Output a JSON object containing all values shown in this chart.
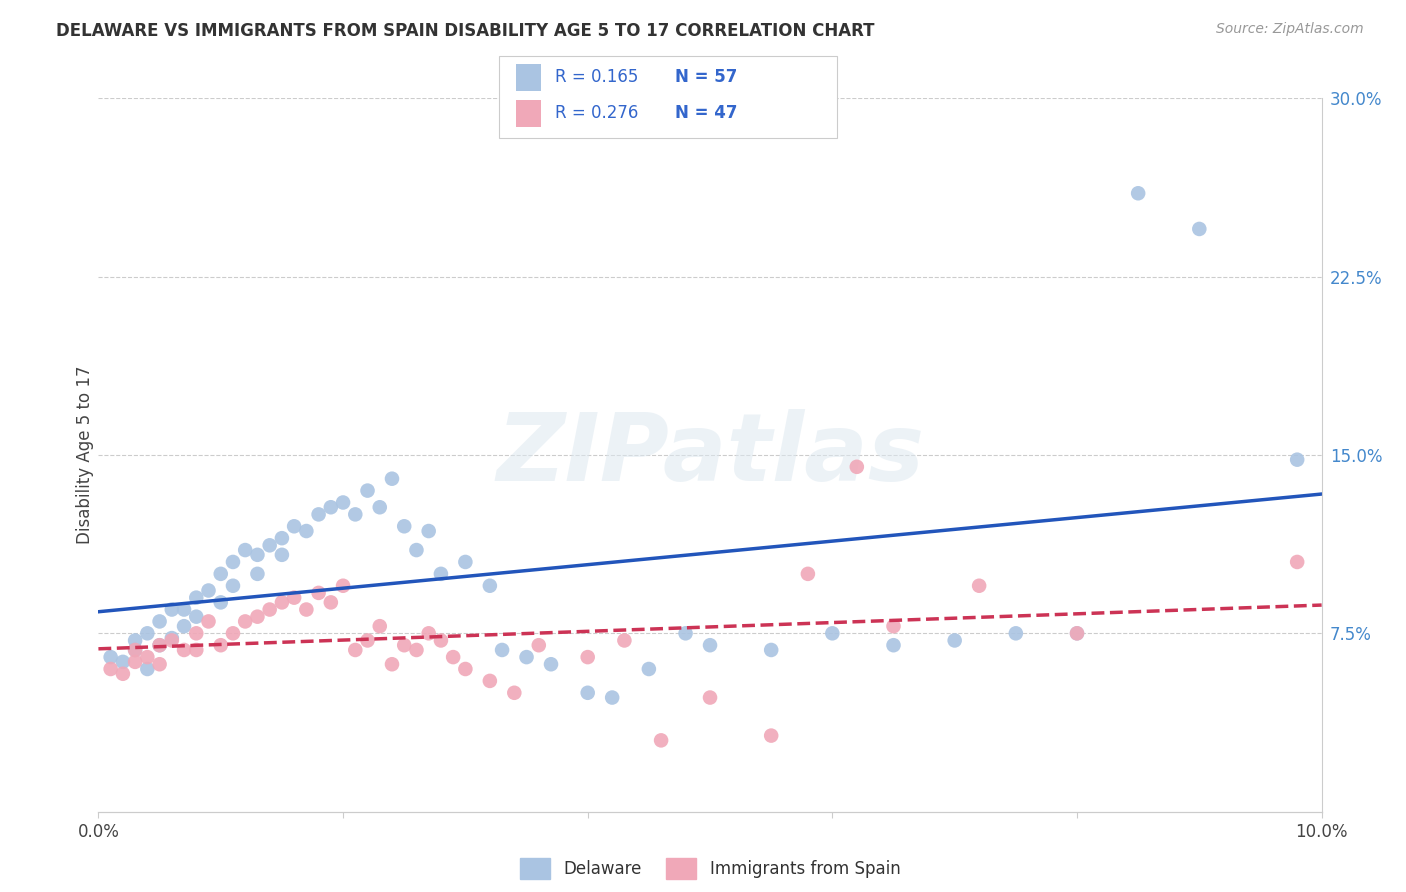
{
  "title": "DELAWARE VS IMMIGRANTS FROM SPAIN DISABILITY AGE 5 TO 17 CORRELATION CHART",
  "source": "Source: ZipAtlas.com",
  "ylabel": "Disability Age 5 to 17",
  "xlim": [
    0.0,
    0.1
  ],
  "ylim": [
    0.0,
    0.3
  ],
  "xticks": [
    0.0,
    0.02,
    0.04,
    0.06,
    0.08,
    0.1
  ],
  "xticklabels": [
    "0.0%",
    "",
    "",
    "",
    "",
    "10.0%"
  ],
  "yticks_right": [
    0.075,
    0.15,
    0.225,
    0.3
  ],
  "ytick_right_labels": [
    "7.5%",
    "15.0%",
    "22.5%",
    "30.0%"
  ],
  "delaware_color": "#aac4e2",
  "spain_color": "#f0a8b8",
  "delaware_line_color": "#2255bb",
  "spain_line_color": "#cc3355",
  "R_delaware": 0.165,
  "N_delaware": 57,
  "R_spain": 0.276,
  "N_spain": 47,
  "watermark": "ZIPatlas",
  "background_color": "#ffffff",
  "grid_color": "#cccccc",
  "delaware_x": [
    0.001,
    0.002,
    0.003,
    0.003,
    0.004,
    0.004,
    0.005,
    0.005,
    0.006,
    0.006,
    0.007,
    0.007,
    0.008,
    0.008,
    0.009,
    0.01,
    0.01,
    0.011,
    0.011,
    0.012,
    0.013,
    0.013,
    0.014,
    0.015,
    0.015,
    0.016,
    0.017,
    0.018,
    0.019,
    0.02,
    0.021,
    0.022,
    0.023,
    0.024,
    0.025,
    0.026,
    0.027,
    0.028,
    0.03,
    0.032,
    0.033,
    0.035,
    0.037,
    0.04,
    0.042,
    0.045,
    0.048,
    0.05,
    0.055,
    0.06,
    0.065,
    0.07,
    0.075,
    0.08,
    0.085,
    0.09,
    0.098
  ],
  "delaware_y": [
    0.065,
    0.063,
    0.072,
    0.068,
    0.075,
    0.06,
    0.08,
    0.07,
    0.073,
    0.085,
    0.085,
    0.078,
    0.09,
    0.082,
    0.093,
    0.1,
    0.088,
    0.095,
    0.105,
    0.11,
    0.108,
    0.1,
    0.112,
    0.115,
    0.108,
    0.12,
    0.118,
    0.125,
    0.128,
    0.13,
    0.125,
    0.135,
    0.128,
    0.14,
    0.12,
    0.11,
    0.118,
    0.1,
    0.105,
    0.095,
    0.068,
    0.065,
    0.062,
    0.05,
    0.048,
    0.06,
    0.075,
    0.07,
    0.068,
    0.075,
    0.07,
    0.072,
    0.075,
    0.075,
    0.26,
    0.245,
    0.148
  ],
  "spain_x": [
    0.001,
    0.002,
    0.003,
    0.003,
    0.004,
    0.005,
    0.005,
    0.006,
    0.007,
    0.008,
    0.008,
    0.009,
    0.01,
    0.011,
    0.012,
    0.013,
    0.014,
    0.015,
    0.016,
    0.017,
    0.018,
    0.019,
    0.02,
    0.021,
    0.022,
    0.023,
    0.024,
    0.025,
    0.026,
    0.027,
    0.028,
    0.029,
    0.03,
    0.032,
    0.034,
    0.036,
    0.04,
    0.043,
    0.046,
    0.05,
    0.055,
    0.058,
    0.062,
    0.065,
    0.072,
    0.08,
    0.098
  ],
  "spain_y": [
    0.06,
    0.058,
    0.063,
    0.068,
    0.065,
    0.07,
    0.062,
    0.072,
    0.068,
    0.075,
    0.068,
    0.08,
    0.07,
    0.075,
    0.08,
    0.082,
    0.085,
    0.088,
    0.09,
    0.085,
    0.092,
    0.088,
    0.095,
    0.068,
    0.072,
    0.078,
    0.062,
    0.07,
    0.068,
    0.075,
    0.072,
    0.065,
    0.06,
    0.055,
    0.05,
    0.07,
    0.065,
    0.072,
    0.03,
    0.048,
    0.032,
    0.1,
    0.145,
    0.078,
    0.095,
    0.075,
    0.105
  ]
}
